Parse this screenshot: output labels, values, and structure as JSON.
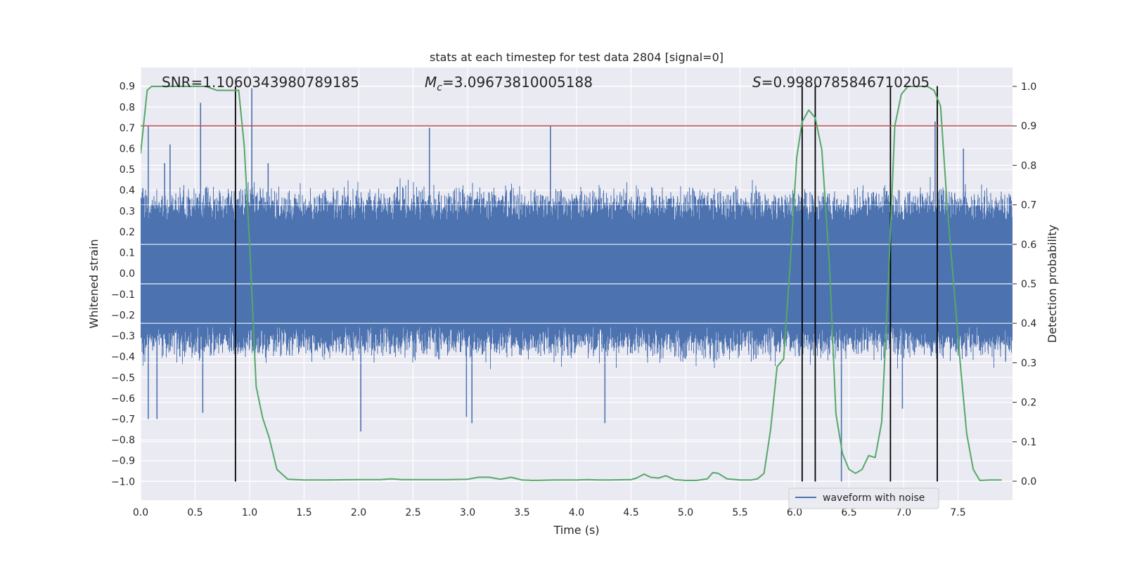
{
  "chart_data": {
    "type": "line",
    "title": "stats at each timestep for test data 2804 [signal=0]",
    "xlabel": "Time (s)",
    "ylabel": "Whitened strain",
    "y2label": "Detection probability",
    "xlim": [
      0.0,
      8.0
    ],
    "ylim": [
      -1.09,
      0.99
    ],
    "y2lim": [
      -0.048,
      1.048
    ],
    "x_ticks": [
      "0.0",
      "0.5",
      "1.0",
      "1.5",
      "2.0",
      "2.5",
      "3.0",
      "3.5",
      "4.0",
      "4.5",
      "5.0",
      "5.5",
      "6.0",
      "6.5",
      "7.0",
      "7.5"
    ],
    "y_ticks": [
      "0.9",
      "0.8",
      "0.7",
      "0.6",
      "0.5",
      "0.4",
      "0.3",
      "0.2",
      "0.1",
      "0.0",
      "−0.1",
      "−0.2",
      "−0.3",
      "−0.4",
      "−0.5",
      "−0.6",
      "−0.7",
      "−0.8",
      "−0.9",
      "−1.0"
    ],
    "y2_ticks": [
      "1.0",
      "0.9",
      "0.8",
      "0.7",
      "0.6",
      "0.5",
      "0.4",
      "0.3",
      "0.2",
      "0.1",
      "0.0"
    ],
    "annotations": {
      "snr": "SNR=1.1060343980789185",
      "mc_symbol": "M",
      "mc_sub": "c",
      "mc_value": "=3.09673810005188",
      "s_symbol": "S",
      "s_value": "=0.9980785846710205"
    },
    "legend": {
      "label": "waveform with noise",
      "placement": "lower-right"
    },
    "threshold": {
      "value": 0.9,
      "axis": "y2",
      "color": "#c44e52"
    },
    "vertical_lines": [
      0.87,
      6.07,
      6.19,
      6.88,
      7.31
    ],
    "waveform": {
      "name": "waveform with noise",
      "color": "#4c72b0",
      "typical_amplitude": 0.32,
      "spikes": [
        {
          "x": 0.02,
          "y": 0.41
        },
        {
          "x": 0.07,
          "y": 0.71
        },
        {
          "x": 0.22,
          "y": 0.53
        },
        {
          "x": 0.27,
          "y": 0.62
        },
        {
          "x": 0.55,
          "y": 0.82
        },
        {
          "x": 1.02,
          "y": 0.89
        },
        {
          "x": 1.17,
          "y": 0.53
        },
        {
          "x": 2.65,
          "y": 0.7
        },
        {
          "x": 3.76,
          "y": 0.71
        },
        {
          "x": 7.29,
          "y": 0.73
        },
        {
          "x": 7.55,
          "y": 0.6
        },
        {
          "x": 0.07,
          "y": -0.7
        },
        {
          "x": 0.15,
          "y": -0.7
        },
        {
          "x": 0.57,
          "y": -0.67
        },
        {
          "x": 2.02,
          "y": -0.76
        },
        {
          "x": 2.99,
          "y": -0.69
        },
        {
          "x": 3.04,
          "y": -0.72
        },
        {
          "x": 4.26,
          "y": -0.72
        },
        {
          "x": 6.43,
          "y": -1.0
        },
        {
          "x": 6.99,
          "y": -0.65
        }
      ]
    },
    "probability": {
      "color": "#55a868",
      "x": [
        0.0,
        0.06,
        0.1,
        0.2,
        0.3,
        0.4,
        0.5,
        0.6,
        0.7,
        0.76,
        0.8,
        0.86,
        0.9,
        0.95,
        1.0,
        1.06,
        1.12,
        1.18,
        1.25,
        1.35,
        1.5,
        1.7,
        2.0,
        2.2,
        2.3,
        2.4,
        2.6,
        2.8,
        3.0,
        3.1,
        3.2,
        3.3,
        3.4,
        3.5,
        3.6,
        3.8,
        4.0,
        4.1,
        4.2,
        4.3,
        4.5,
        4.55,
        4.62,
        4.68,
        4.75,
        4.82,
        4.9,
        5.0,
        5.1,
        5.2,
        5.25,
        5.3,
        5.38,
        5.5,
        5.6,
        5.66,
        5.72,
        5.78,
        5.84,
        5.9,
        5.96,
        6.02,
        6.07,
        6.13,
        6.19,
        6.25,
        6.32,
        6.38,
        6.44,
        6.5,
        6.56,
        6.62,
        6.68,
        6.74,
        6.8,
        6.86,
        6.92,
        6.98,
        7.04,
        7.1,
        7.16,
        7.22,
        7.28,
        7.34,
        7.4,
        7.46,
        7.52,
        7.58,
        7.64,
        7.7,
        7.8,
        7.9
      ],
      "y": [
        0.83,
        0.99,
        1.0,
        1.0,
        1.0,
        1.0,
        1.0,
        1.0,
        0.99,
        0.99,
        0.99,
        0.99,
        0.99,
        0.85,
        0.6,
        0.24,
        0.16,
        0.11,
        0.03,
        0.005,
        0.003,
        0.003,
        0.004,
        0.004,
        0.006,
        0.004,
        0.004,
        0.004,
        0.005,
        0.01,
        0.01,
        0.005,
        0.01,
        0.003,
        0.002,
        0.003,
        0.003,
        0.004,
        0.003,
        0.003,
        0.004,
        0.008,
        0.018,
        0.01,
        0.008,
        0.014,
        0.004,
        0.002,
        0.002,
        0.006,
        0.022,
        0.02,
        0.006,
        0.003,
        0.003,
        0.006,
        0.02,
        0.13,
        0.29,
        0.31,
        0.55,
        0.82,
        0.91,
        0.94,
        0.92,
        0.84,
        0.55,
        0.17,
        0.07,
        0.03,
        0.02,
        0.03,
        0.065,
        0.06,
        0.15,
        0.5,
        0.9,
        0.98,
        1.0,
        1.0,
        1.0,
        1.0,
        0.99,
        0.95,
        0.7,
        0.5,
        0.3,
        0.12,
        0.03,
        0.002,
        0.003,
        0.003
      ]
    }
  }
}
